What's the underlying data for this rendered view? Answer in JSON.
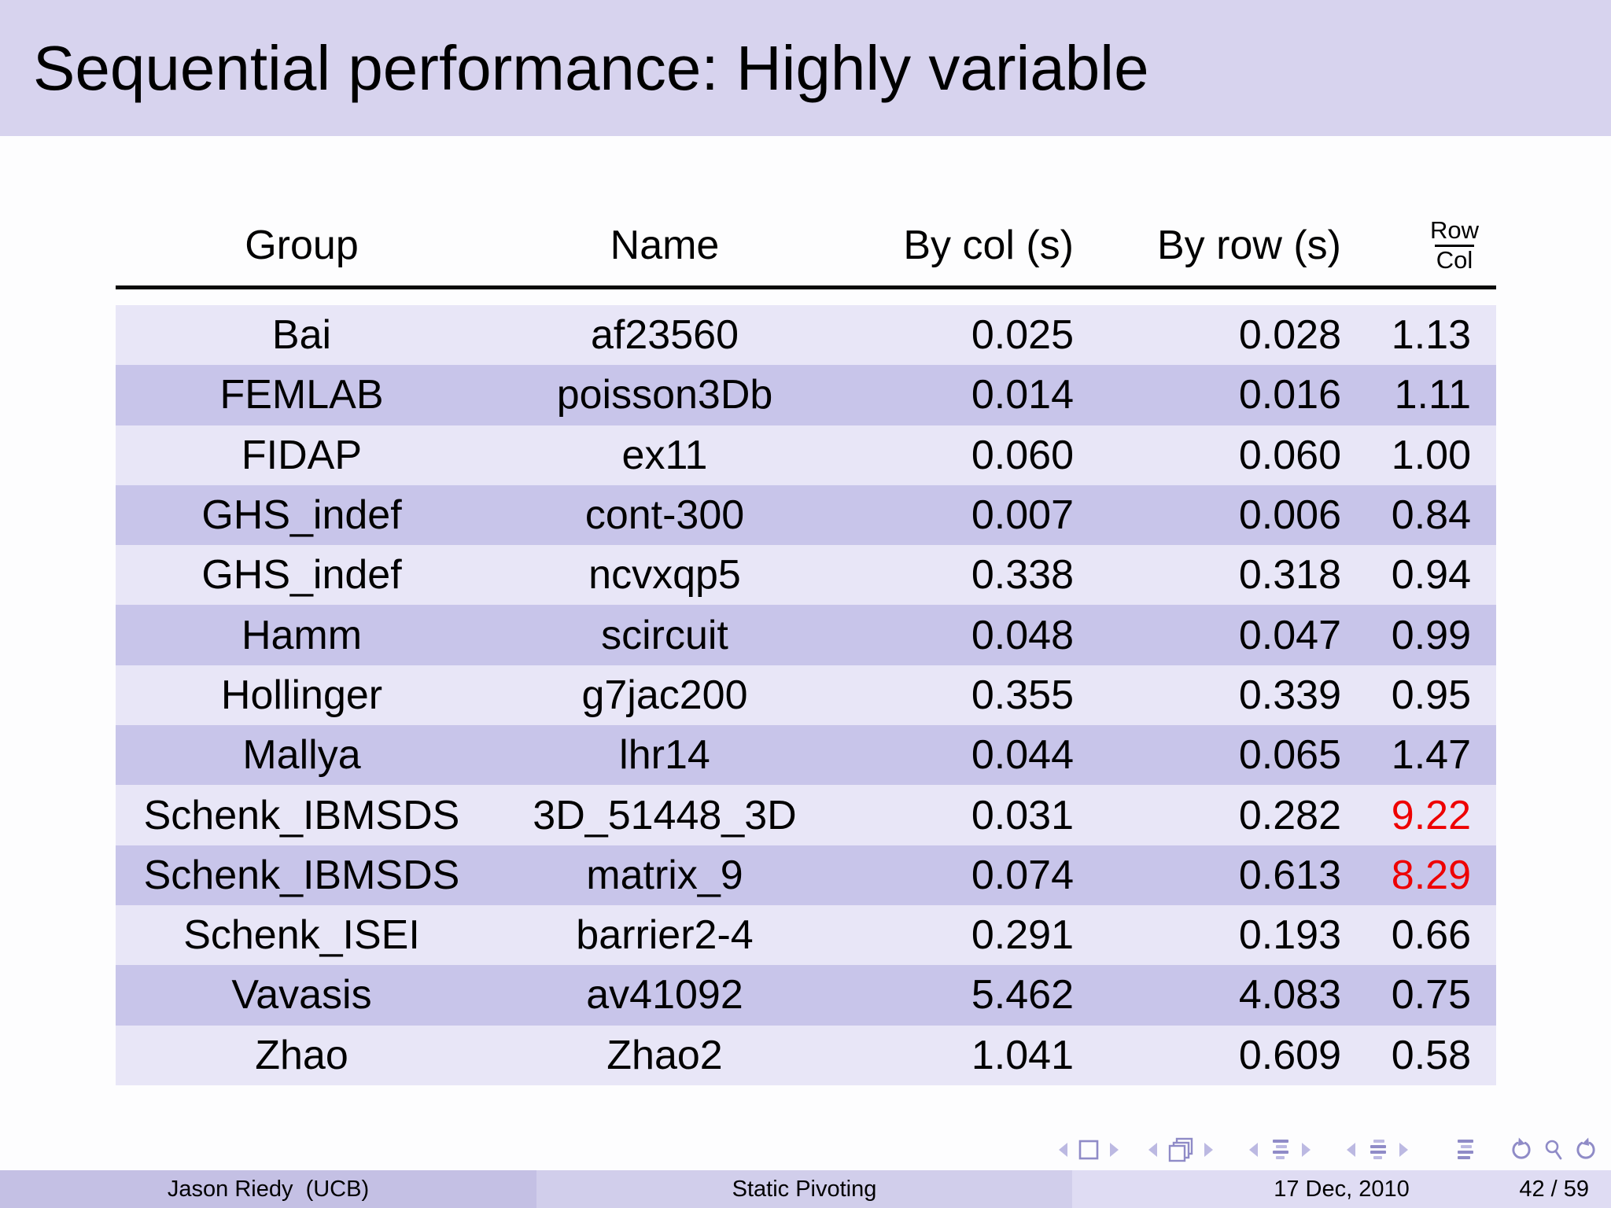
{
  "title": "Sequential performance:  Highly variable",
  "table": {
    "headers": [
      "Group",
      "Name",
      "By col (s)",
      "By row (s)"
    ],
    "ratio_header": {
      "numerator": "Row",
      "denominator": "Col"
    },
    "rows": [
      {
        "group": "Bai",
        "name": "af23560",
        "by_col": "0.025",
        "by_row": "0.028",
        "ratio": "1.13",
        "highlight": false
      },
      {
        "group": "FEMLAB",
        "name": "poisson3Db",
        "by_col": "0.014",
        "by_row": "0.016",
        "ratio": "1.11",
        "highlight": false
      },
      {
        "group": "FIDAP",
        "name": "ex11",
        "by_col": "0.060",
        "by_row": "0.060",
        "ratio": "1.00",
        "highlight": false
      },
      {
        "group": "GHS_indef",
        "name": "cont-300",
        "by_col": "0.007",
        "by_row": "0.006",
        "ratio": "0.84",
        "highlight": false
      },
      {
        "group": "GHS_indef",
        "name": "ncvxqp5",
        "by_col": "0.338",
        "by_row": "0.318",
        "ratio": "0.94",
        "highlight": false
      },
      {
        "group": "Hamm",
        "name": "scircuit",
        "by_col": "0.048",
        "by_row": "0.047",
        "ratio": "0.99",
        "highlight": false
      },
      {
        "group": "Hollinger",
        "name": "g7jac200",
        "by_col": "0.355",
        "by_row": "0.339",
        "ratio": "0.95",
        "highlight": false
      },
      {
        "group": "Mallya",
        "name": "lhr14",
        "by_col": "0.044",
        "by_row": "0.065",
        "ratio": "1.47",
        "highlight": false
      },
      {
        "group": "Schenk_IBMSDS",
        "name": "3D_51448_3D",
        "by_col": "0.031",
        "by_row": "0.282",
        "ratio": "9.22",
        "highlight": true
      },
      {
        "group": "Schenk_IBMSDS",
        "name": "matrix_9",
        "by_col": "0.074",
        "by_row": "0.613",
        "ratio": "8.29",
        "highlight": true
      },
      {
        "group": "Schenk_ISEI",
        "name": "barrier2-4",
        "by_col": "0.291",
        "by_row": "0.193",
        "ratio": "0.66",
        "highlight": false
      },
      {
        "group": "Vavasis",
        "name": "av41092",
        "by_col": "5.462",
        "by_row": "4.083",
        "ratio": "0.75",
        "highlight": false
      },
      {
        "group": "Zhao",
        "name": "Zhao2",
        "by_col": "1.041",
        "by_row": "0.609",
        "ratio": "0.58",
        "highlight": false
      }
    ]
  },
  "footer": {
    "author": "Jason Riedy  (UCB)",
    "talk_title": "Static Pivoting",
    "date": "17 Dec, 2010",
    "slide_number": "42 / 59"
  },
  "nav_icons": [
    "prev-frame",
    "frame",
    "next-frame",
    "prev-slide",
    "slide-stack",
    "next-slide",
    "prev-section",
    "section-list",
    "next-section",
    "prev-subsection",
    "subsection-list",
    "next-subsection",
    "appendix-list",
    "undo",
    "search",
    "redo"
  ],
  "colors": {
    "title_bar_bg": "#d7d3ee",
    "row_light": "#e8e6f7",
    "row_dark": "#c8c5ea",
    "ratio_highlight": "#ee0000",
    "footer_author_bg": "#c4c0e4",
    "footer_title_bg": "#d1ceeb",
    "footer_date_bg": "#dfdcf3",
    "nav_icon": "#8f8bc7"
  }
}
